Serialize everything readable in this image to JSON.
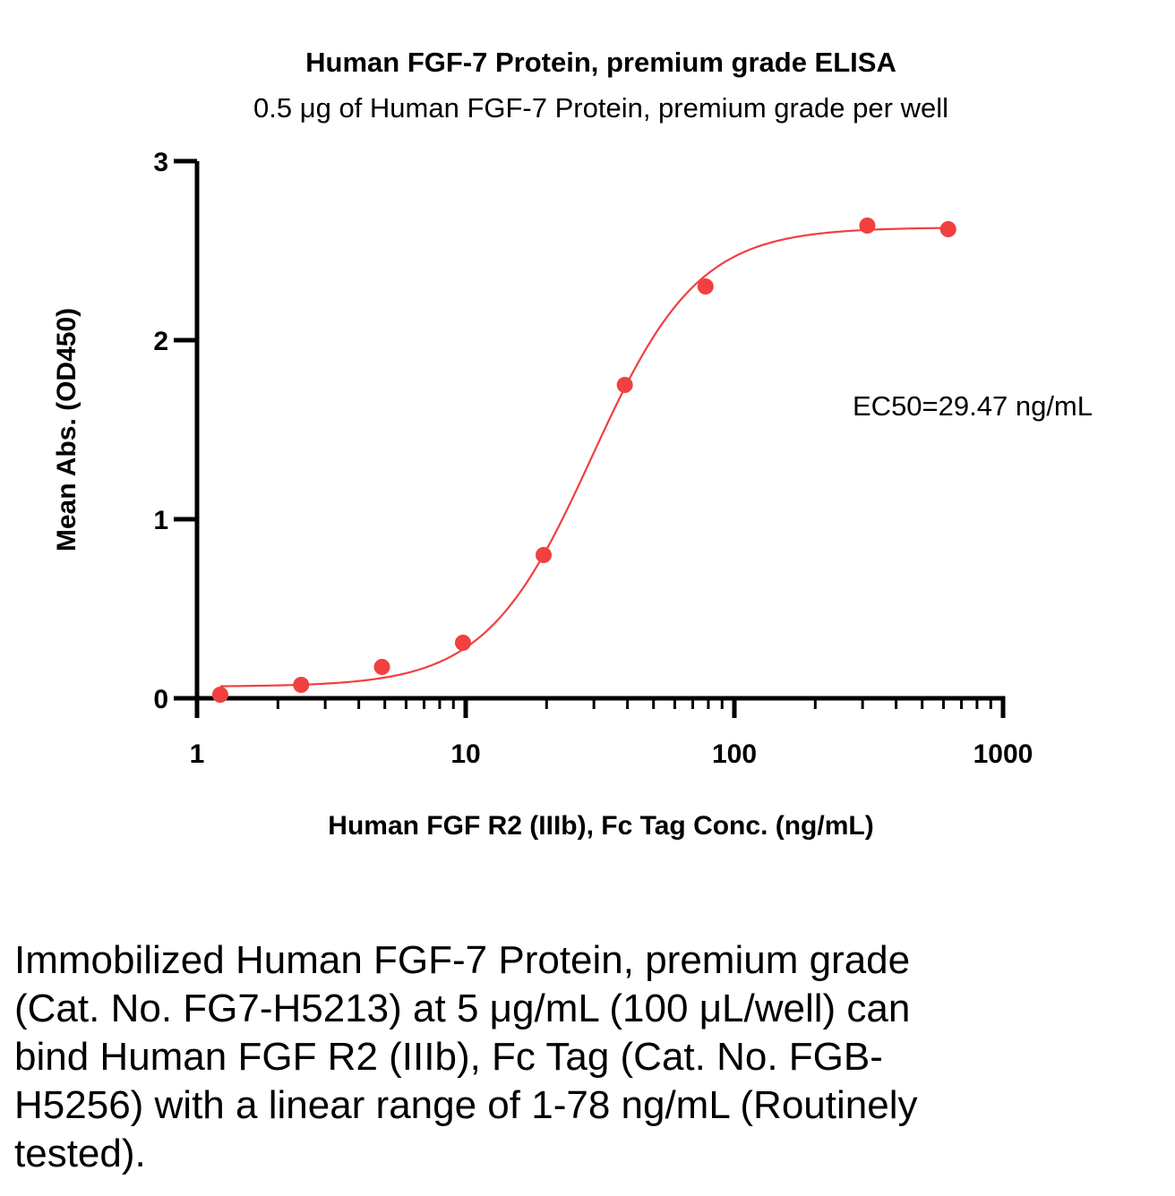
{
  "chart_data": {
    "type": "scatter",
    "title": "Human FGF-7 Protein, premium grade ELISA",
    "subtitle": "0.5 μg of Human FGF-7 Protein, premium grade per well",
    "xlabel": "Human FGF R2 (IIIb), Fc Tag Conc. (ng/mL)",
    "ylabel": "Mean Abs. (OD450)",
    "x_scale": "log",
    "xlim": [
      1,
      1000
    ],
    "ylim": [
      0,
      3
    ],
    "x_ticks": [
      1,
      10,
      100,
      1000
    ],
    "x_tick_labels": [
      "1",
      "10",
      "100",
      "1000"
    ],
    "y_ticks": [
      0,
      1,
      2,
      3
    ],
    "y_tick_labels": [
      "0",
      "1",
      "2",
      "3"
    ],
    "grid": false,
    "series": [
      {
        "x": [
          1.22,
          2.44,
          4.88,
          9.77,
          19.5,
          39.1,
          78.1,
          312.5,
          625
        ],
        "y": [
          0.02,
          0.075,
          0.175,
          0.31,
          0.8,
          1.75,
          2.3,
          2.64,
          2.62
        ],
        "color": "#f04040",
        "marker": "circle"
      }
    ],
    "fit_curve": {
      "model": "4PL",
      "bottom": 0.065,
      "top": 2.63,
      "ec50": 29.47,
      "hill": 2.2,
      "color": "#f04040"
    },
    "annotation": "EC50=29.47 ng/mL"
  },
  "caption": "Immobilized Human FGF-7 Protein, premium grade (Cat. No. FG7-H5213) at 5 μg/mL (100 μL/well) can bind Human FGF R2 (IIIb), Fc Tag (Cat. No. FGB-H5256) with a linear range of 1-78 ng/mL (Routinely tested)."
}
